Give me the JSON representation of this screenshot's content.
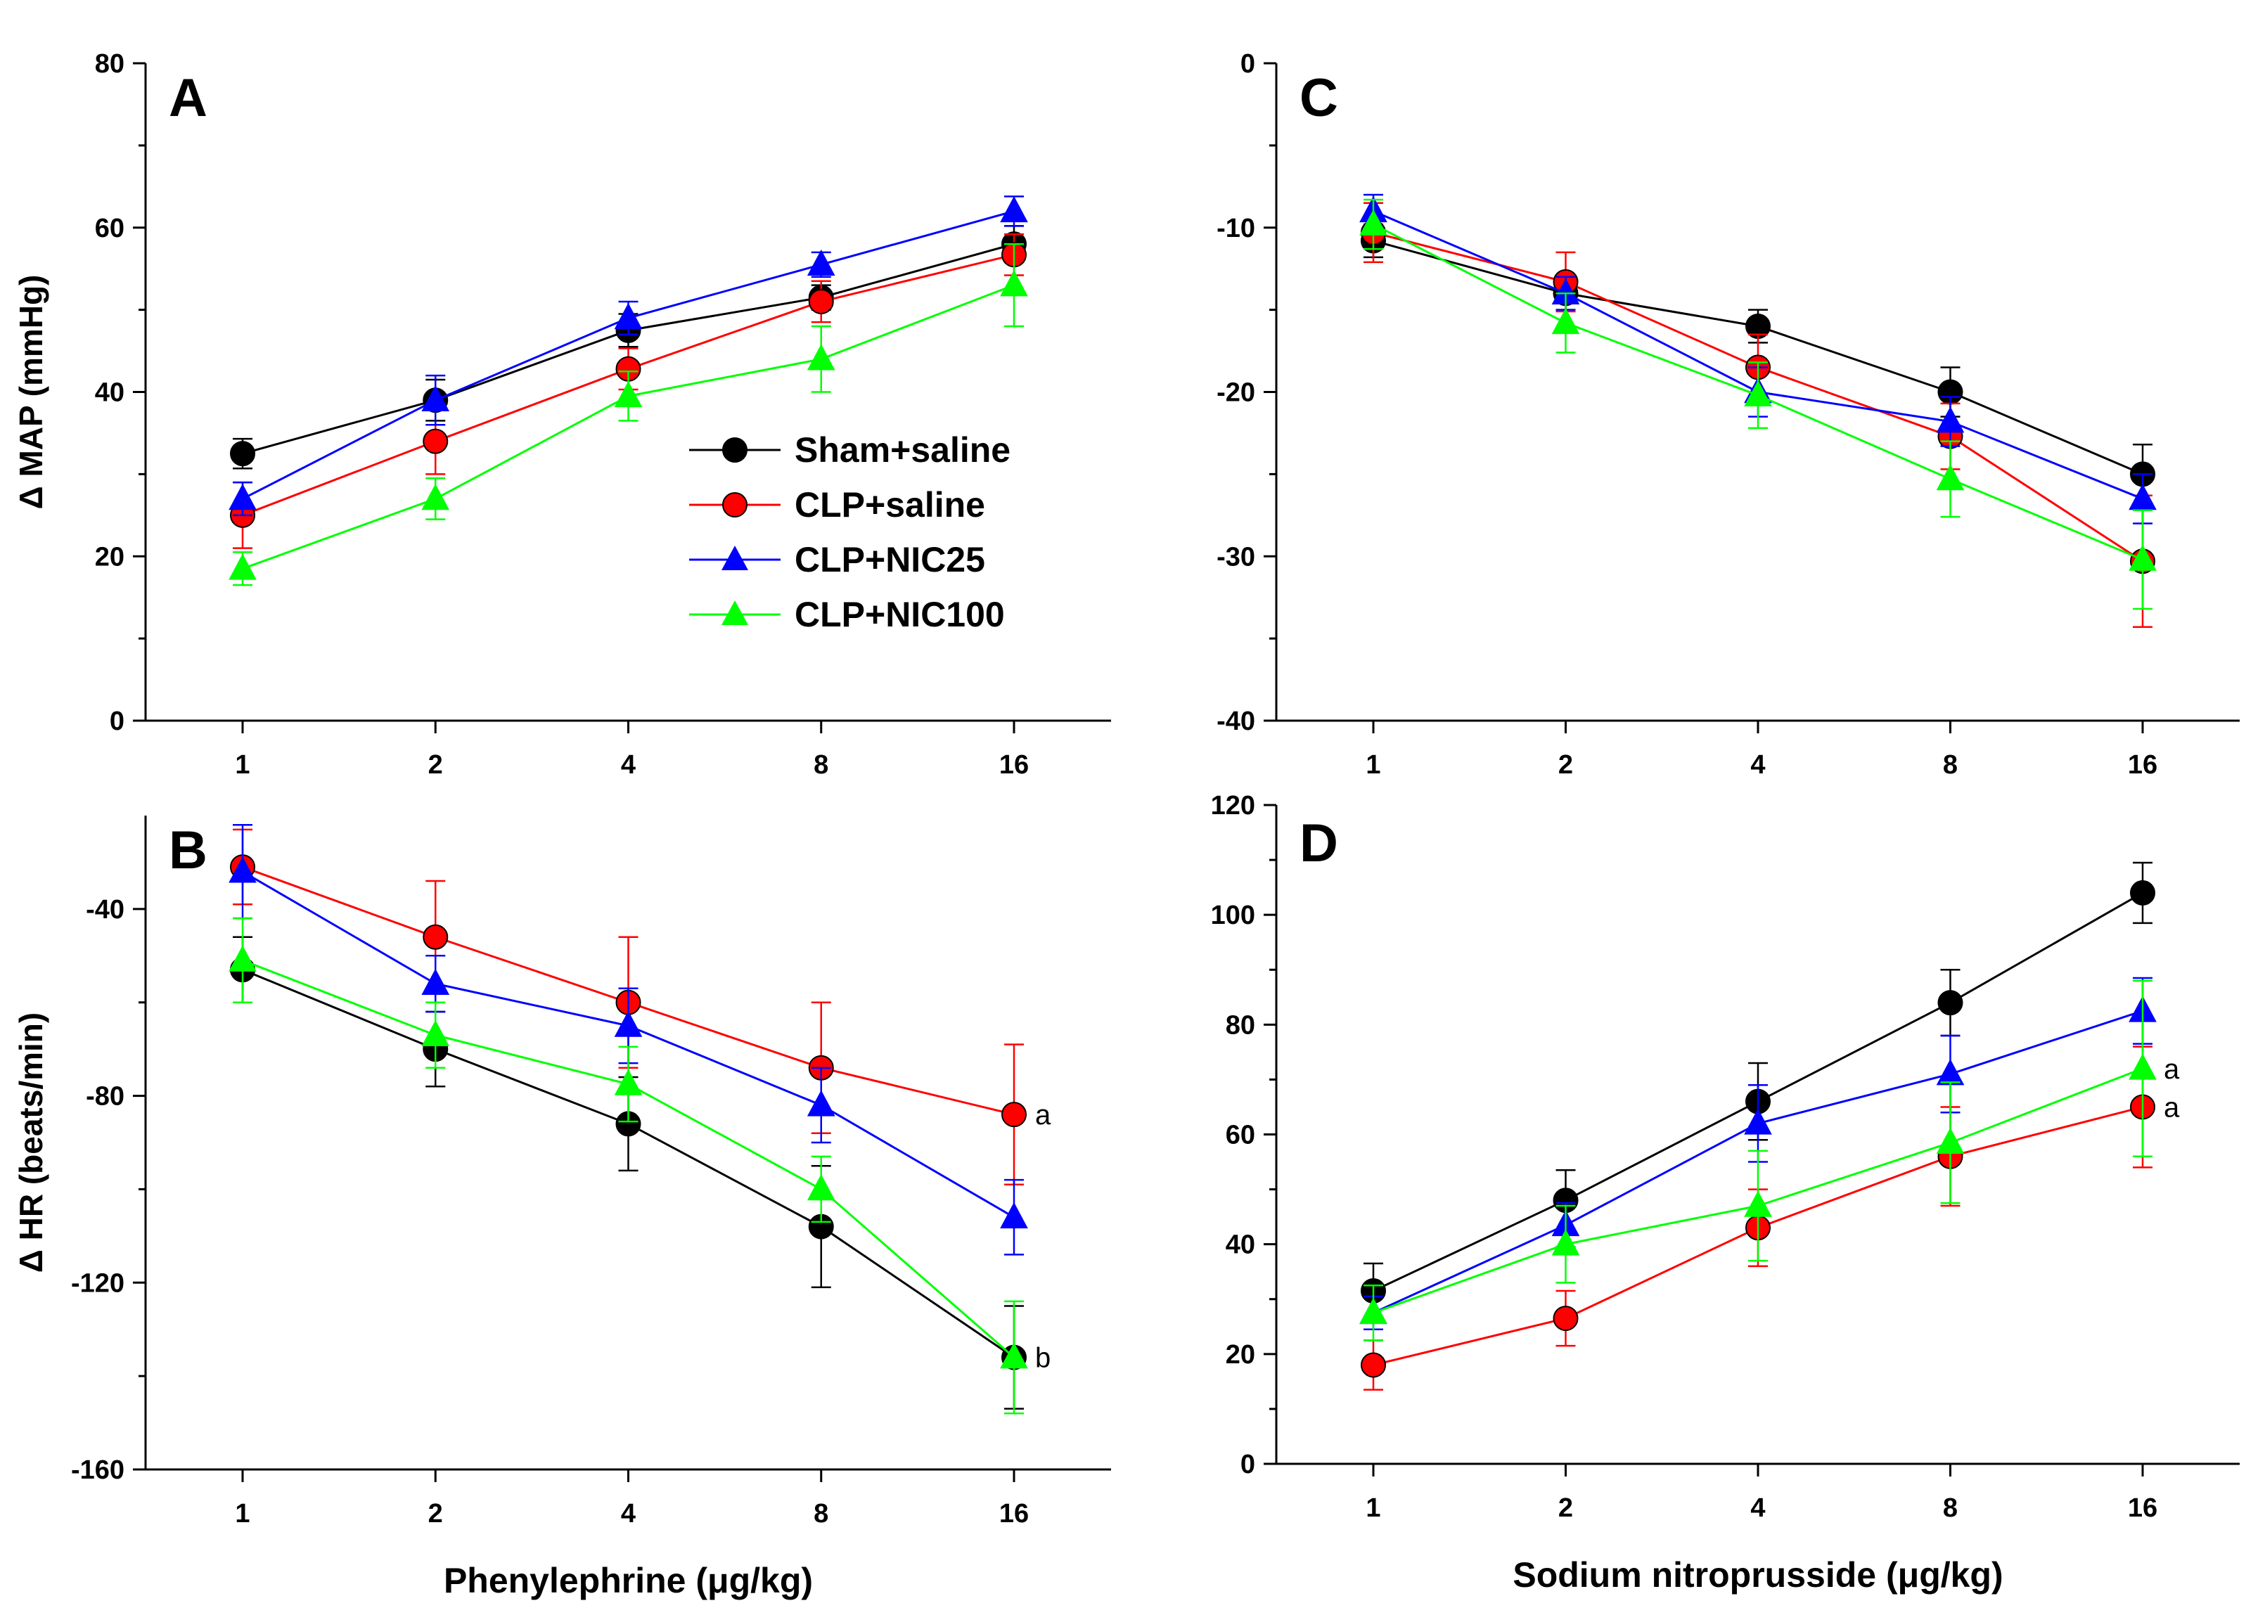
{
  "chart_data": [
    {
      "panel": "A",
      "type": "line",
      "ylabel": "Δ MAP (mmHg)",
      "xlabel": "",
      "categories": [
        "1",
        "2",
        "4",
        "8",
        "16"
      ],
      "ylim": [
        0,
        80
      ],
      "yticks": [
        0,
        20,
        40,
        60,
        80
      ],
      "series": [
        {
          "name": "Sham+saline",
          "color": "#000000",
          "marker": "circle",
          "values": [
            32.5,
            39,
            47.5,
            51.5,
            58
          ],
          "errors": [
            1.8,
            2.5,
            2,
            1.5,
            2.2
          ]
        },
        {
          "name": "CLP+saline",
          "color": "#ff0000",
          "marker": "circle",
          "values": [
            25,
            34,
            42.8,
            51,
            56.7
          ],
          "errors": [
            4,
            4,
            2.5,
            2.5,
            2.5
          ]
        },
        {
          "name": "CLP+NIC25",
          "color": "#0000ff",
          "marker": "triangle",
          "values": [
            27,
            39,
            49,
            55.5,
            62
          ],
          "errors": [
            2,
            3,
            2,
            1.5,
            1.8
          ]
        },
        {
          "name": "CLP+NIC100",
          "color": "#00ff00",
          "marker": "triangle",
          "values": [
            18.5,
            27,
            39.5,
            44,
            53
          ],
          "errors": [
            2,
            2.5,
            3,
            4,
            5
          ]
        }
      ],
      "annotations": []
    },
    {
      "panel": "B",
      "type": "line",
      "ylabel": "Δ HR (beats/min)",
      "xlabel": "Phenylephrine (μg/kg)",
      "categories": [
        "1",
        "2",
        "4",
        "8",
        "16"
      ],
      "ylim": [
        -160,
        -20
      ],
      "yticks": [
        -160,
        -120,
        -80,
        -40
      ],
      "series": [
        {
          "name": "Sham+saline",
          "color": "#000000",
          "marker": "circle",
          "values": [
            -53,
            -70,
            -86,
            -108,
            -136
          ],
          "errors": [
            7,
            8,
            10,
            13,
            11
          ]
        },
        {
          "name": "CLP+saline",
          "color": "#ff0000",
          "marker": "circle",
          "values": [
            -31,
            -46,
            -60,
            -74,
            -84
          ],
          "errors": [
            8,
            12,
            14,
            14,
            15
          ]
        },
        {
          "name": "CLP+NIC25",
          "color": "#0000ff",
          "marker": "triangle",
          "values": [
            -32,
            -56,
            -65,
            -82,
            -106
          ],
          "errors": [
            10,
            6,
            8,
            8,
            8
          ]
        },
        {
          "name": "CLP+NIC100",
          "color": "#00ff00",
          "marker": "triangle",
          "values": [
            -51,
            -67,
            -77.5,
            -100,
            -136
          ],
          "errors": [
            9,
            7,
            8,
            7,
            12
          ]
        }
      ],
      "annotations": [
        {
          "text": "a",
          "category": "16",
          "y": -84
        },
        {
          "text": "b",
          "category": "16",
          "y": -136
        }
      ]
    },
    {
      "panel": "C",
      "type": "line",
      "ylabel": "",
      "xlabel": "",
      "categories": [
        "1",
        "2",
        "4",
        "8",
        "16"
      ],
      "ylim": [
        -40,
        0
      ],
      "yticks": [
        -40,
        -30,
        -20,
        -10,
        0
      ],
      "series": [
        {
          "name": "Sham+saline",
          "color": "#000000",
          "marker": "circle",
          "values": [
            -10.8,
            -14,
            -16,
            -20,
            -25
          ],
          "errors": [
            1,
            1,
            1,
            1.5,
            1.8
          ]
        },
        {
          "name": "CLP+saline",
          "color": "#ff0000",
          "marker": "circle",
          "values": [
            -10.3,
            -13.3,
            -18.5,
            -22.7,
            -30.3
          ],
          "errors": [
            1.8,
            1.8,
            2,
            2,
            4
          ]
        },
        {
          "name": "CLP+NIC25",
          "color": "#0000ff",
          "marker": "triangle",
          "values": [
            -9,
            -14,
            -20,
            -21.8,
            -26.5
          ],
          "errors": [
            1,
            1,
            1.5,
            1.5,
            1.5
          ]
        },
        {
          "name": "CLP+NIC100",
          "color": "#00ff00",
          "marker": "triangle",
          "values": [
            -9.8,
            -15.8,
            -20.2,
            -25.3,
            -30.2
          ],
          "errors": [
            1.5,
            1.8,
            2,
            2.3,
            3
          ]
        }
      ],
      "annotations": []
    },
    {
      "panel": "D",
      "type": "line",
      "ylabel": "",
      "xlabel": "Sodium nitroprusside (μg/kg)",
      "categories": [
        "1",
        "2",
        "4",
        "8",
        "16"
      ],
      "ylim": [
        0,
        120
      ],
      "yticks": [
        0,
        20,
        40,
        60,
        80,
        100,
        120
      ],
      "series": [
        {
          "name": "Sham+saline",
          "color": "#000000",
          "marker": "circle",
          "values": [
            31.5,
            48,
            66,
            84,
            104
          ],
          "errors": [
            5,
            5.5,
            7,
            6,
            5.5
          ]
        },
        {
          "name": "CLP+saline",
          "color": "#ff0000",
          "marker": "circle",
          "values": [
            18,
            26.5,
            43,
            56,
            65
          ],
          "errors": [
            4.5,
            5,
            7,
            9,
            11
          ]
        },
        {
          "name": "CLP+NIC25",
          "color": "#0000ff",
          "marker": "triangle",
          "values": [
            27.5,
            43.5,
            62,
            71,
            82.5
          ],
          "errors": [
            3,
            4,
            7,
            7,
            6
          ]
        },
        {
          "name": "CLP+NIC100",
          "color": "#00ff00",
          "marker": "triangle",
          "values": [
            27.5,
            40,
            47,
            58.5,
            72
          ],
          "errors": [
            5,
            7,
            10,
            11,
            16
          ]
        }
      ],
      "annotations": [
        {
          "text": "a",
          "category": "16",
          "y": 72
        },
        {
          "text": "a",
          "category": "16",
          "y": 65
        }
      ]
    }
  ],
  "legend": {
    "location": "panel A, lower-right",
    "entries": [
      {
        "label": "Sham+saline",
        "color": "#000000",
        "marker": "circle"
      },
      {
        "label": "CLP+saline",
        "color": "#ff0000",
        "marker": "circle"
      },
      {
        "label": "CLP+NIC25",
        "color": "#0000ff",
        "marker": "triangle"
      },
      {
        "label": "CLP+NIC100",
        "color": "#00ff00",
        "marker": "triangle"
      }
    ]
  }
}
